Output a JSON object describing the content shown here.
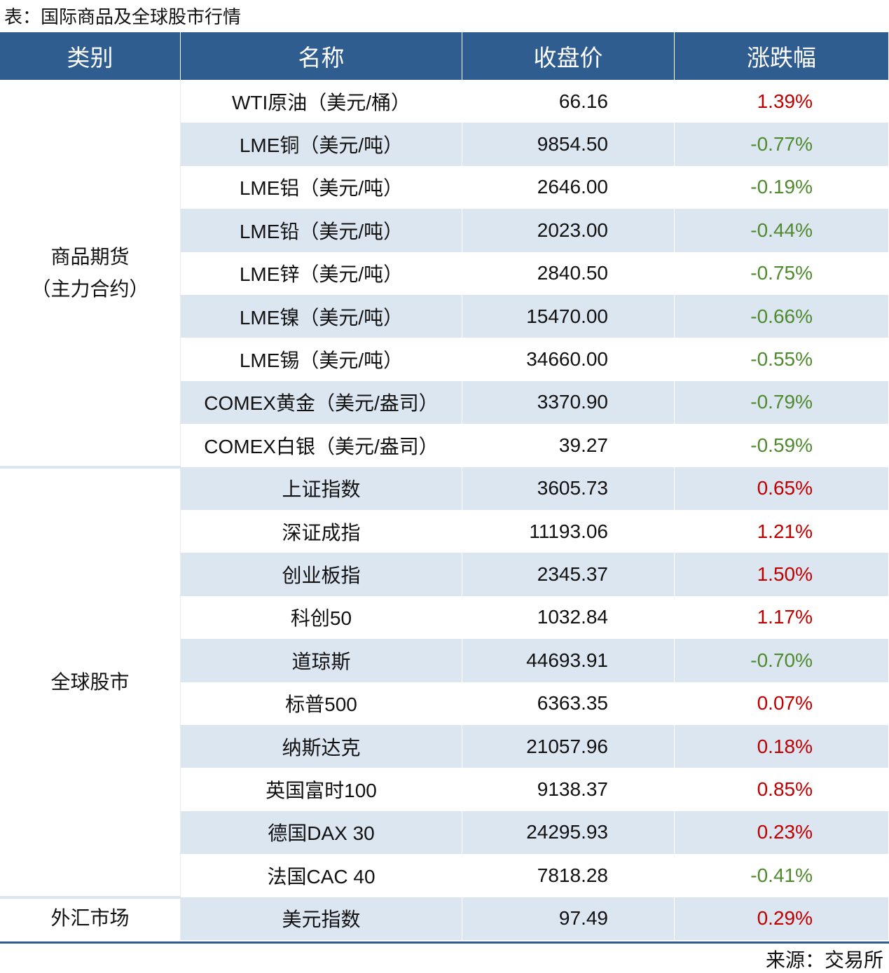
{
  "title": "表：国际商品及全球股市行情",
  "table": {
    "header": [
      "类别",
      "名称",
      "收盘价",
      "涨跌幅"
    ],
    "groups": [
      {
        "category": [
          "商品期货",
          "（主力合约）"
        ],
        "rows": [
          [
            "WTI原油（美元/桶）",
            "66.16",
            "1.39%"
          ],
          [
            "LME铜（美元/吨）",
            "9854.50",
            "-0.77%"
          ],
          [
            "LME铝（美元/吨）",
            "2646.00",
            "-0.19%"
          ],
          [
            "LME铅（美元/吨）",
            "2023.00",
            "-0.44%"
          ],
          [
            "LME锌（美元/吨）",
            "2840.50",
            "-0.75%"
          ],
          [
            "LME镍（美元/吨）",
            "15470.00",
            "-0.66%"
          ],
          [
            "LME锡（美元/吨）",
            "34660.00",
            "-0.55%"
          ],
          [
            "COMEX黄金（美元/盎司）",
            "3370.90",
            "-0.79%"
          ],
          [
            "COMEX白银（美元/盎司）",
            "39.27",
            "-0.59%"
          ]
        ]
      },
      {
        "category": [
          "全球股市"
        ],
        "rows": [
          [
            "上证指数",
            "3605.73",
            "0.65%"
          ],
          [
            "深证成指",
            "11193.06",
            "1.21%"
          ],
          [
            "创业板指",
            "2345.37",
            "1.50%"
          ],
          [
            "科创50",
            "1032.84",
            "1.17%"
          ],
          [
            "道琼斯",
            "44693.91",
            "-0.70%"
          ],
          [
            "标普500",
            "6363.35",
            "0.07%"
          ],
          [
            "纳斯达克",
            "21057.96",
            "0.18%"
          ],
          [
            "英国富时100",
            "9138.37",
            "0.85%"
          ],
          [
            "德国DAX 30",
            "24295.93",
            "0.23%"
          ],
          [
            "法国CAC 40",
            "7818.28",
            "-0.41%"
          ]
        ]
      },
      {
        "category": [
          "外汇市场"
        ],
        "rows": [
          [
            "美元指数",
            "97.49",
            "0.29%"
          ]
        ]
      }
    ]
  },
  "source": "来源：交易所"
}
